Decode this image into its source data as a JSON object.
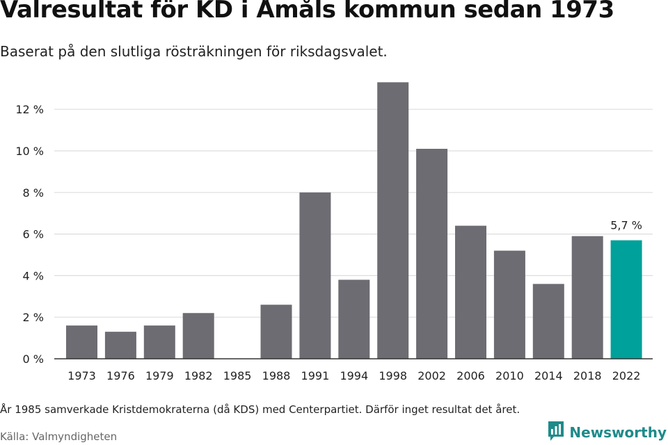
{
  "header": {
    "title": "Valresultat för KD i Åmåls kommun sedan 1973",
    "subtitle": "Baserat på den slutliga rösträkningen för riksdagsvalet."
  },
  "footer": {
    "note": "År 1985 samverkade Kristdemokraterna (då KDS) med Centerpartiet. Därför inget resultat det året.",
    "source": "Källa: Valmyndigheten",
    "brand": "Newsworthy"
  },
  "colors": {
    "bar": "#6d6c72",
    "highlight": "#00a19a",
    "grid": "#dddddd",
    "axis": "#333333",
    "brand": "#1f8a8a"
  },
  "chart_data": {
    "type": "bar",
    "categories": [
      "1973",
      "1976",
      "1979",
      "1982",
      "1985",
      "1988",
      "1991",
      "1994",
      "1998",
      "2002",
      "2006",
      "2010",
      "2014",
      "2018",
      "2022"
    ],
    "values": [
      1.6,
      1.3,
      1.6,
      2.2,
      null,
      2.6,
      8.0,
      3.8,
      13.3,
      10.1,
      6.4,
      5.2,
      3.6,
      5.9,
      5.7
    ],
    "highlight_index": 14,
    "data_labels": [
      {
        "index": 14,
        "text": "5,7 %"
      }
    ],
    "ylim": [
      0,
      14
    ],
    "yticks": [
      0,
      2,
      4,
      6,
      8,
      10,
      12
    ],
    "ytick_labels": [
      "0 %",
      "2 %",
      "4 %",
      "6 %",
      "8 %",
      "10 %",
      "12 %"
    ],
    "grid": true,
    "xlabel": "",
    "ylabel": ""
  }
}
